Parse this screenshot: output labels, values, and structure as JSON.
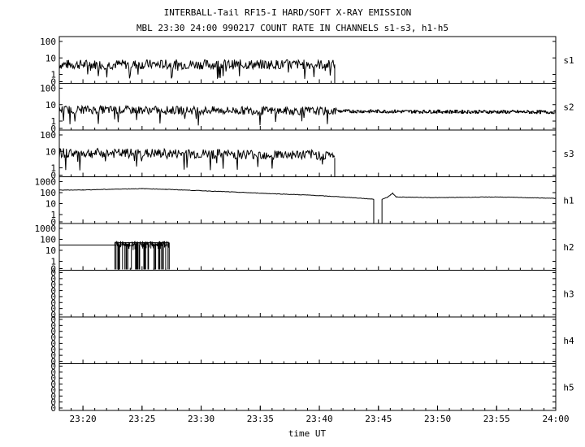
{
  "header": {
    "title": "INTERBALL-Tail RF15-I HARD/SOFT X-RAY EMISSION",
    "subtitle": "MBL 23:30 24:00 990217  COUNT RATE IN CHANNELS s1-s3, h1-h5"
  },
  "chart_data": {
    "type": "line",
    "title": "INTERBALL-Tail RF15-I HARD/SOFT X-RAY EMISSION",
    "subtitle": "MBL 23:30 24:00 990217  COUNT RATE IN CHANNELS s1-s3, h1-h5",
    "xlabel": "time UT",
    "x_range_min": [
      1398,
      1440
    ],
    "x_tick_min": [
      1400,
      1405,
      1410,
      1415,
      1420,
      1425,
      1430,
      1435,
      1440
    ],
    "x_tick_labels": [
      "23:20",
      "23:25",
      "23:30",
      "23:35",
      "23:40",
      "23:45",
      "23:50",
      "23:55",
      "24:00"
    ],
    "y_scale": "log (0 at bottom)",
    "grid": false,
    "panels": [
      {
        "name": "s1",
        "y_ticks": [
          "100",
          "10",
          "1",
          "0"
        ],
        "y_ticks_val": [
          100,
          10,
          1,
          0
        ],
        "segments": [
          {
            "x0": 1398.0,
            "x1": 1421.3,
            "y0": 4.0,
            "y1": 4.0,
            "noise": 0.3,
            "dips": 0.05
          }
        ],
        "drop_at": 1421.3
      },
      {
        "name": "s2",
        "y_ticks": [
          "100",
          "10",
          "1",
          "0"
        ],
        "y_ticks_val": [
          100,
          10,
          1,
          0
        ],
        "segments": [
          {
            "x0": 1398.0,
            "x1": 1421.5,
            "y0": 5.0,
            "y1": 4.0,
            "noise": 0.25,
            "dips": 0.03
          },
          {
            "x0": 1421.5,
            "x1": 1440.0,
            "y0": 4.0,
            "y1": 3.5,
            "noise": 0.1,
            "dips": 0,
            "step": 0.5
          }
        ]
      },
      {
        "name": "s3",
        "y_ticks": [
          "100",
          "10",
          "1",
          "0"
        ],
        "y_ticks_val": [
          100,
          10,
          1,
          0
        ],
        "segments": [
          {
            "x0": 1398.0,
            "x1": 1421.3,
            "y0": 8.0,
            "y1": 6.0,
            "noise": 0.3,
            "dips": 0.05
          }
        ],
        "drop_at": 1421.3
      },
      {
        "name": "h1",
        "y_ticks": [
          "1000",
          "100",
          "10",
          "1",
          "0"
        ],
        "y_ticks_val": [
          1000,
          100,
          10,
          1,
          0
        ],
        "points": [
          [
            1398,
            170
          ],
          [
            1400,
            175
          ],
          [
            1403,
            210
          ],
          [
            1405,
            230
          ],
          [
            1407,
            200
          ],
          [
            1410,
            150
          ],
          [
            1413,
            110
          ],
          [
            1416,
            80
          ],
          [
            1419,
            60
          ],
          [
            1422,
            40
          ],
          [
            1424,
            28
          ],
          [
            1424.6,
            25
          ]
        ],
        "gap": [
          1424.6,
          1425.3
        ],
        "after_points": [
          [
            1425.3,
            25
          ],
          [
            1425.8,
            40
          ],
          [
            1426.2,
            90
          ],
          [
            1426.5,
            40
          ],
          [
            1430,
            35
          ],
          [
            1435,
            40
          ],
          [
            1440,
            30
          ]
        ]
      },
      {
        "name": "h2",
        "y_ticks": [
          "1000",
          "100",
          "10",
          "1",
          "0"
        ],
        "y_ticks_val": [
          1000,
          100,
          10,
          1,
          0
        ],
        "baseline": {
          "x0": 1398,
          "x1": 1402.7,
          "y": 30
        },
        "burst": {
          "x0": 1402.7,
          "x1": 1407.3,
          "y_top": 50,
          "y_bottom": 0
        }
      },
      {
        "name": "h3",
        "y_ticks": [
          "0",
          "0",
          "0",
          "0",
          "0",
          "0",
          "0",
          "0"
        ],
        "y_ticks_val": [
          0,
          0,
          0,
          0,
          0,
          0,
          0,
          0
        ]
      },
      {
        "name": "h4",
        "y_ticks": [
          "0",
          "0",
          "0",
          "0",
          "0",
          "0",
          "0",
          "0"
        ],
        "y_ticks_val": [
          0,
          0,
          0,
          0,
          0,
          0,
          0,
          0
        ]
      },
      {
        "name": "h5",
        "y_ticks": [
          "0",
          "0",
          "0",
          "0",
          "0",
          "0",
          "0",
          "0"
        ],
        "y_ticks_val": [
          0,
          0,
          0,
          0,
          0,
          0,
          0,
          0
        ]
      }
    ]
  }
}
